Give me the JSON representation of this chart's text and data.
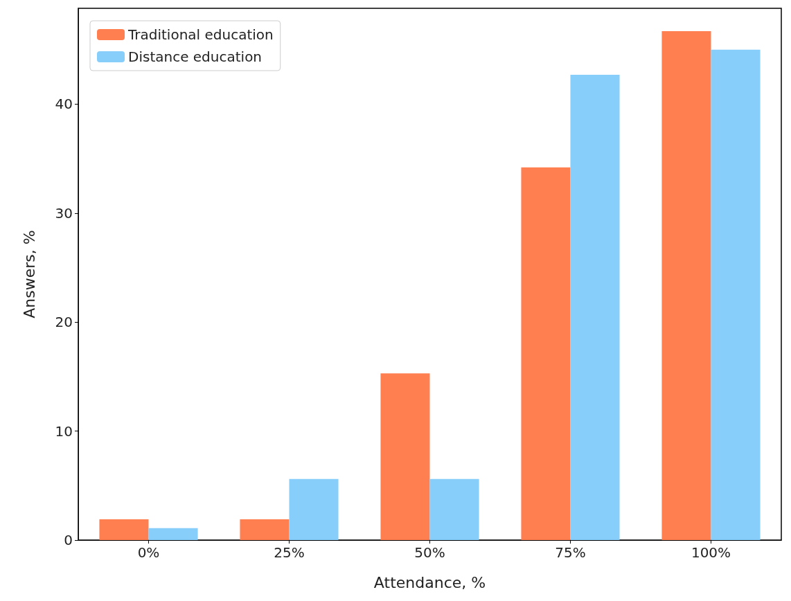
{
  "chart_data": {
    "type": "bar",
    "categories": [
      "0%",
      "25%",
      "50%",
      "75%",
      "100%"
    ],
    "xlabel": "Attendance, %",
    "ylabel": "Answers, %",
    "series": [
      {
        "name": "Traditional education",
        "color": "#ff7f50",
        "values": [
          1.9,
          1.9,
          15.3,
          34.2,
          46.7
        ]
      },
      {
        "name": "Distance education",
        "color": "#87cefa",
        "values": [
          1.1,
          5.6,
          5.6,
          42.7,
          45.0
        ]
      }
    ],
    "ylim": [
      0,
      48.8
    ],
    "yticks": [
      0,
      10,
      20,
      30,
      40
    ],
    "grid": false,
    "legend": "top left"
  }
}
